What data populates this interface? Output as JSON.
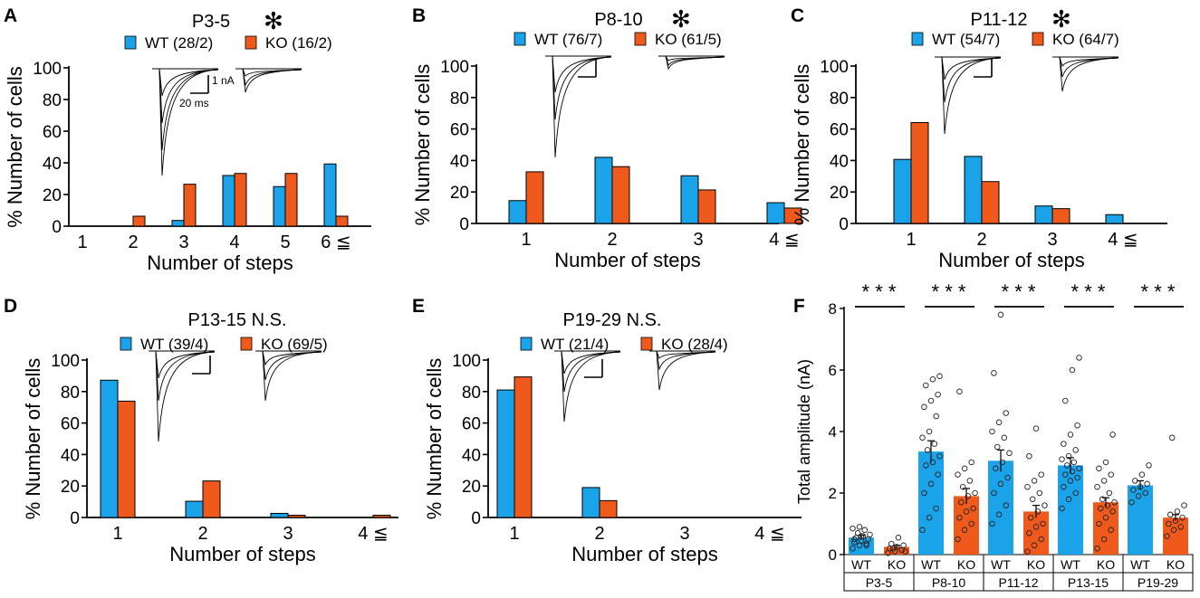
{
  "figure": {
    "wt_color": "#1aa3e8",
    "ko_color": "#ef5a1c",
    "asterisk_glyph": "✻"
  },
  "chart_data": [
    {
      "panel": "A",
      "type": "bar",
      "title": "P3-5",
      "significant": true,
      "legend": [
        "WT (28/2)",
        "KO (16/2)"
      ],
      "categories": [
        "1",
        "2",
        "3",
        "4",
        "5",
        "6 ≦"
      ],
      "series": [
        {
          "name": "WT",
          "values": [
            0,
            0,
            3.6,
            32,
            25,
            39.3
          ]
        },
        {
          "name": "KO",
          "values": [
            0,
            6.3,
            26.5,
            33.3,
            33.3,
            6.3
          ]
        }
      ],
      "xlabel": "Number of steps",
      "ylabel": "% Number of  cells",
      "ylim": [
        0,
        100
      ],
      "yticks": [
        0,
        20,
        40,
        60,
        80,
        100
      ],
      "scalebar": {
        "current": "1 nA",
        "time": "20 ms"
      }
    },
    {
      "panel": "B",
      "type": "bar",
      "title": "P8-10",
      "significant": true,
      "legend": [
        "WT (76/7)",
        "KO (61/5)"
      ],
      "categories": [
        "1",
        "2",
        "3",
        "4 ≦"
      ],
      "series": [
        {
          "name": "WT",
          "values": [
            14.5,
            42,
            30.3,
            13.2
          ]
        },
        {
          "name": "KO",
          "values": [
            32.8,
            36.1,
            21.3,
            9.8
          ]
        }
      ],
      "xlabel": "Number of steps",
      "ylabel": "% Number of  cells",
      "ylim": [
        0,
        100
      ],
      "yticks": [
        0,
        20,
        40,
        60,
        80,
        100
      ]
    },
    {
      "panel": "C",
      "type": "bar",
      "title": "P11-12",
      "significant": true,
      "legend": [
        "WT (54/7)",
        "KO (64/7)"
      ],
      "categories": [
        "1",
        "2",
        "3",
        "4 ≦"
      ],
      "series": [
        {
          "name": "WT",
          "values": [
            40.7,
            42.6,
            11.1,
            5.6
          ]
        },
        {
          "name": "KO",
          "values": [
            64.1,
            26.6,
            9.4,
            0
          ]
        }
      ],
      "xlabel": "Number of steps",
      "ylabel": "% Number of  cells",
      "ylim": [
        0,
        100
      ],
      "yticks": [
        0,
        20,
        40,
        60,
        80,
        100
      ]
    },
    {
      "panel": "D",
      "type": "bar",
      "title": "P13-15 N.S.",
      "significant": false,
      "legend": [
        "WT (39/4)",
        "KO (69/5)"
      ],
      "categories": [
        "1",
        "2",
        "3",
        "4 ≦"
      ],
      "series": [
        {
          "name": "WT",
          "values": [
            87.2,
            10.3,
            2.6,
            0
          ]
        },
        {
          "name": "KO",
          "values": [
            73.9,
            23.2,
            1.4,
            1.4
          ]
        }
      ],
      "xlabel": "Number of steps",
      "ylabel": "% Number of  cells",
      "ylim": [
        0,
        100
      ],
      "yticks": [
        0,
        20,
        40,
        60,
        80,
        100
      ]
    },
    {
      "panel": "E",
      "type": "bar",
      "title": "P19-29 N.S.",
      "significant": false,
      "legend": [
        "WT (21/4)",
        "KO (28/4)"
      ],
      "categories": [
        "1",
        "2",
        "3",
        "4 ≦"
      ],
      "series": [
        {
          "name": "WT",
          "values": [
            81,
            19,
            0,
            0
          ]
        },
        {
          "name": "KO",
          "values": [
            89.3,
            10.7,
            0,
            0
          ]
        }
      ],
      "xlabel": "Number of steps",
      "ylabel": "% Number of  cells",
      "ylim": [
        0,
        100
      ],
      "yticks": [
        0,
        20,
        40,
        60,
        80,
        100
      ]
    },
    {
      "panel": "F",
      "type": "bar",
      "ylabel": "Total amplitude (nA)",
      "ylim": [
        0,
        8
      ],
      "yticks": [
        0,
        2,
        4,
        6,
        8
      ],
      "significance": "* * *",
      "groups": [
        {
          "label": "P3-5",
          "wt": {
            "label": "WT",
            "mean": 0.55,
            "sem": 0.07,
            "points": [
              0.2,
              0.3,
              0.35,
              0.4,
              0.45,
              0.5,
              0.55,
              0.6,
              0.65,
              0.7,
              0.8,
              0.85,
              0.9,
              0.3,
              0.5,
              0.6
            ]
          },
          "ko": {
            "label": "KO",
            "mean": 0.25,
            "sem": 0.05,
            "points": [
              0.05,
              0.1,
              0.15,
              0.2,
              0.25,
              0.3,
              0.35,
              0.55,
              0.1,
              0.2
            ]
          }
        },
        {
          "label": "P8-10",
          "wt": {
            "label": "WT",
            "mean": 3.35,
            "sem": 0.35,
            "points": [
              0.8,
              1.2,
              1.5,
              2.0,
              2.3,
              2.6,
              2.9,
              3.0,
              3.2,
              3.4,
              3.6,
              3.8,
              4.0,
              4.5,
              4.8,
              5.0,
              5.2,
              5.5,
              5.7,
              5.8
            ]
          },
          "ko": {
            "label": "KO",
            "mean": 1.9,
            "sem": 0.25,
            "points": [
              0.5,
              0.8,
              1.0,
              1.2,
              1.4,
              1.5,
              1.7,
              1.9,
              2.0,
              2.2,
              2.4,
              2.6,
              2.8,
              3.0,
              5.3
            ]
          }
        },
        {
          "label": "P11-12",
          "wt": {
            "label": "WT",
            "mean": 3.05,
            "sem": 0.35,
            "points": [
              1.0,
              1.3,
              1.6,
              2.0,
              2.3,
              2.5,
              2.8,
              3.0,
              3.3,
              3.5,
              3.8,
              4.0,
              4.3,
              4.6,
              5.9,
              7.8
            ]
          },
          "ko": {
            "label": "KO",
            "mean": 1.4,
            "sem": 0.2,
            "points": [
              0.1,
              0.3,
              0.5,
              0.7,
              0.9,
              1.0,
              1.2,
              1.4,
              1.6,
              1.8,
              2.0,
              2.2,
              2.4,
              2.6,
              3.2,
              4.1
            ]
          }
        },
        {
          "label": "P13-15",
          "wt": {
            "label": "WT",
            "mean": 2.9,
            "sem": 0.25,
            "points": [
              1.5,
              1.8,
              2.0,
              2.2,
              2.4,
              2.5,
              2.6,
              2.7,
              2.8,
              2.9,
              3.0,
              3.1,
              3.2,
              3.4,
              3.6,
              3.9,
              4.2,
              5.0,
              6.0,
              6.4
            ]
          },
          "ko": {
            "label": "KO",
            "mean": 1.7,
            "sem": 0.15,
            "points": [
              0.2,
              0.5,
              0.8,
              1.0,
              1.2,
              1.4,
              1.5,
              1.6,
              1.7,
              1.8,
              2.0,
              2.2,
              2.4,
              2.6,
              2.8,
              3.0,
              3.9
            ]
          }
        },
        {
          "label": "P19-29",
          "wt": {
            "label": "WT",
            "mean": 2.25,
            "sem": 0.15,
            "points": [
              1.7,
              1.9,
              2.0,
              2.1,
              2.2,
              2.3,
              2.4,
              2.6,
              2.9
            ]
          },
          "ko": {
            "label": "KO",
            "mean": 1.2,
            "sem": 0.1,
            "points": [
              0.6,
              0.8,
              0.9,
              1.0,
              1.1,
              1.2,
              1.3,
              1.4,
              1.6,
              3.8
            ]
          }
        }
      ]
    }
  ]
}
